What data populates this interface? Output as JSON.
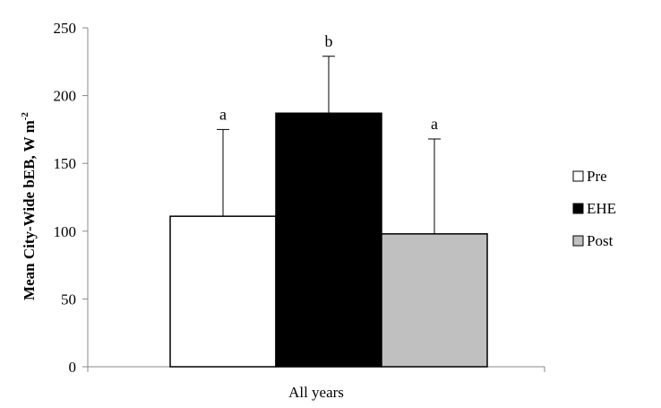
{
  "chart_data": {
    "type": "bar",
    "categories": [
      "All years"
    ],
    "series": [
      {
        "name": "Pre",
        "values": [
          111
        ],
        "error": [
          64
        ],
        "annotation": "a",
        "color": "#ffffff"
      },
      {
        "name": "EHE",
        "values": [
          187
        ],
        "error": [
          42
        ],
        "annotation": "b",
        "color": "#000000"
      },
      {
        "name": "Post",
        "values": [
          98
        ],
        "error": [
          70
        ],
        "annotation": "a",
        "color": "#c0c0c0"
      }
    ],
    "ylabel": "Mean City-Wide bEB, W m",
    "ylabel_superscript": "-2",
    "ylim": [
      0,
      250
    ],
    "yticks": [
      "0",
      "50",
      "100",
      "150",
      "200",
      "250"
    ],
    "grid": false,
    "legend_position": "right"
  }
}
